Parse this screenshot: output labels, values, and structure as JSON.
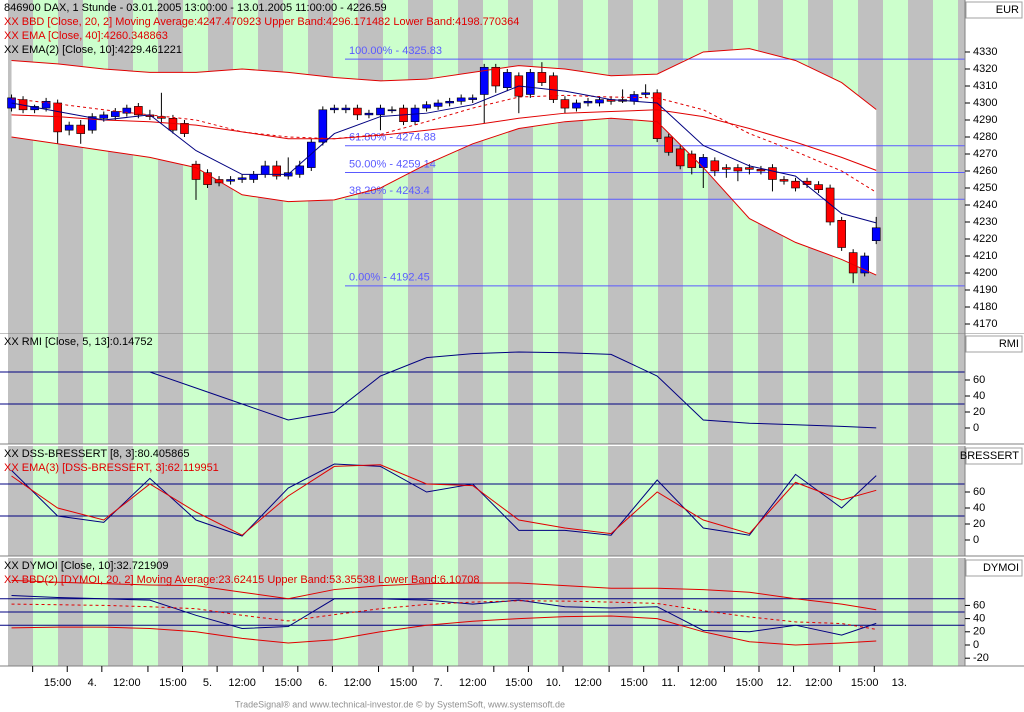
{
  "chart_data": [
    {
      "type": "candlestick",
      "axis_title": "EUR",
      "header": [
        {
          "text": "846900  DAX, 1 Stunde - 03.01.2005 13:00:00 - 13.01.2005 11:00:00 - 4226.59",
          "color": "#000000"
        },
        {
          "text": "XX BBD [Close, 20, 2] Moving Average:4247.470923 Upper Band:4296.171482 Lower Band:4198.770364",
          "color": "#e00000"
        },
        {
          "text": "XX EMA [Close, 40]:4260.348863",
          "color": "#e00000"
        },
        {
          "text": "XX EMA(2) [Close, 10]:4229.461221",
          "color": "#000000"
        }
      ],
      "xlim": [
        -1,
        82.7
      ],
      "ylim": [
        4165.3,
        4359.4
      ],
      "yticks": [
        4170,
        4180,
        4190,
        4200,
        4210,
        4220,
        4230,
        4240,
        4250,
        4260,
        4270,
        4280,
        4290,
        4300,
        4310,
        4320,
        4330
      ],
      "up_color": "#0000ff",
      "down_color": "#ff0000",
      "band_fill": "#ffffff",
      "ohlc": [
        [
          4297,
          4305,
          4295,
          4303
        ],
        [
          4302,
          4304,
          4294,
          4296
        ],
        [
          4296,
          4299,
          4294,
          4298
        ],
        [
          4297,
          4303,
          4295,
          4301
        ],
        [
          4300,
          4302,
          4276,
          4283
        ],
        [
          4284,
          4289,
          4281,
          4287
        ],
        [
          4287,
          4290,
          4276,
          4282
        ],
        [
          4284,
          4294,
          4282,
          4292
        ],
        [
          4291,
          4295,
          4289,
          4293
        ],
        [
          4292,
          4297,
          4290,
          4295
        ],
        [
          4294,
          4299,
          4292,
          4297
        ],
        [
          4298,
          4300,
          4291,
          4293
        ],
        [
          4293,
          4296,
          4290,
          4292
        ],
        [
          4292,
          4306,
          4288,
          4291
        ],
        [
          4291,
          4293,
          4282,
          4284
        ],
        [
          4288,
          4290,
          4280,
          4282
        ],
        [
          4264,
          4266,
          4243,
          4255
        ],
        [
          4259,
          4261,
          4250,
          4252
        ],
        [
          4255,
          4257,
          4251,
          4253
        ],
        [
          4254,
          4257,
          4252,
          4255
        ],
        [
          4255,
          4258,
          4253,
          4256
        ],
        [
          4255,
          4260,
          4253,
          4258
        ],
        [
          4258,
          4266,
          4256,
          4263
        ],
        [
          4263,
          4266,
          4255,
          4257
        ],
        [
          4257,
          4268,
          4255,
          4259
        ],
        [
          4258,
          4266,
          4256,
          4263
        ],
        [
          4262,
          4279,
          4260,
          4277
        ],
        [
          4277,
          4298,
          4275,
          4296
        ],
        [
          4296,
          4299,
          4294,
          4297
        ],
        [
          4296,
          4299,
          4294,
          4297
        ],
        [
          4297,
          4299,
          4290,
          4293
        ],
        [
          4293,
          4296,
          4291,
          4294
        ],
        [
          4293,
          4299,
          4284,
          4297
        ],
        [
          4296,
          4298,
          4294,
          4296
        ],
        [
          4297,
          4299,
          4287,
          4289
        ],
        [
          4289,
          4299,
          4287,
          4297
        ],
        [
          4297,
          4301,
          4295,
          4299
        ],
        [
          4298,
          4302,
          4296,
          4300
        ],
        [
          4300,
          4303,
          4298,
          4301
        ],
        [
          4301,
          4305,
          4299,
          4303
        ],
        [
          4302,
          4305,
          4300,
          4303
        ],
        [
          4305,
          4323,
          4288,
          4321
        ],
        [
          4321,
          4323,
          4306,
          4310
        ],
        [
          4309,
          4320,
          4307,
          4318
        ],
        [
          4316,
          4318,
          4294,
          4304
        ],
        [
          4305,
          4320,
          4303,
          4318
        ],
        [
          4318,
          4324,
          4310,
          4312
        ],
        [
          4316,
          4318,
          4300,
          4302
        ],
        [
          4302,
          4304,
          4294,
          4297
        ],
        [
          4297,
          4302,
          4295,
          4300
        ],
        [
          4300,
          4303,
          4298,
          4301
        ],
        [
          4300,
          4304,
          4298,
          4302
        ],
        [
          4302,
          4304,
          4299,
          4301
        ],
        [
          4302,
          4308,
          4300,
          4301
        ],
        [
          4301,
          4307,
          4299,
          4305
        ],
        [
          4305,
          4311,
          4303,
          4306
        ],
        [
          4306,
          4308,
          4277,
          4279
        ],
        [
          4280,
          4282,
          4269,
          4271
        ],
        [
          4273,
          4275,
          4261,
          4263
        ],
        [
          4270,
          4272,
          4258,
          4262
        ],
        [
          4262,
          4270,
          4250,
          4268
        ],
        [
          4266,
          4268,
          4257,
          4260
        ],
        [
          4262,
          4264,
          4256,
          4261
        ],
        [
          4262,
          4264,
          4254,
          4260
        ],
        [
          4262,
          4264,
          4258,
          4261
        ],
        [
          4261,
          4263,
          4258,
          4260
        ],
        [
          4262,
          4264,
          4248,
          4255
        ],
        [
          4255,
          4257,
          4252,
          4254
        ],
        [
          4254,
          4256,
          4248,
          4250
        ],
        [
          4254,
          4256,
          4250,
          4252
        ],
        [
          4252,
          4254,
          4247,
          4249
        ],
        [
          4250,
          4252,
          4228,
          4230
        ],
        [
          4231,
          4233,
          4213,
          4215
        ],
        [
          4212,
          4214,
          4194,
          4200
        ],
        [
          4200,
          4212,
          4198,
          4210
        ],
        [
          4219,
          4233,
          4217,
          4226.59
        ]
      ],
      "x": [
        0,
        4,
        8,
        12,
        16,
        20,
        24,
        28,
        32,
        36,
        40,
        44,
        48,
        52,
        56,
        60,
        64,
        68,
        72,
        75
      ],
      "series": [
        {
          "color": "#e00000",
          "values": [
            4325,
            4323,
            4320,
            4318,
            4318,
            4320,
            4318,
            4315,
            4313,
            4314,
            4318,
            4322,
            4320,
            4316,
            4317,
            4330,
            4332,
            4325,
            4312,
            4296.171482
          ]
        },
        {
          "color": "#e00000",
          "values": [
            4280,
            4276,
            4272,
            4268,
            4262,
            4246,
            4242,
            4243,
            4250,
            4264,
            4276,
            4285,
            4289,
            4291,
            4289,
            4262,
            4232,
            4218,
            4208,
            4198.770364
          ]
        },
        {
          "color": "#e00000",
          "dashed": true,
          "values": [
            4302.5,
            4299.5,
            4296,
            4293,
            4290,
            4283,
            4280,
            4279,
            4281.5,
            4289,
            4297,
            4303.5,
            4304.5,
            4303.5,
            4303,
            4296,
            4282,
            4271.5,
            4260,
            4247.470923
          ]
        },
        {
          "color": "#e00000",
          "values": [
            4293,
            4292,
            4290,
            4289,
            4287,
            4283,
            4279,
            4279,
            4281,
            4284,
            4287,
            4291,
            4294,
            4295,
            4296,
            4292,
            4285,
            4277,
            4268,
            4260.348863
          ]
        },
        {
          "color": "#000080",
          "values": [
            4300,
            4295,
            4290,
            4293,
            4272,
            4258,
            4258,
            4282,
            4292,
            4294,
            4299,
            4310,
            4307,
            4302,
            4300,
            4275,
            4263,
            4257,
            4235,
            4229.461221
          ]
        }
      ],
      "fib_color": "#5a5aff",
      "fib_levels": [
        {
          "value": 4325.83,
          "label": "100.00% - 4325.83"
        },
        {
          "value": 4274.88,
          "label": "61.80% - 4274.88"
        },
        {
          "value": 4259.14,
          "label": "50.00% - 4259.14"
        },
        {
          "value": 4243.4,
          "label": "38.20% - 4243.4"
        },
        {
          "value": 4192.45,
          "label": "0.00% - 4192.45"
        }
      ]
    },
    {
      "type": "line",
      "axis_title": "RMI",
      "header": [
        {
          "text": "XX RMI [Close, 5, 13]:0.14752",
          "color": "#000000"
        }
      ],
      "xlim": [
        -1,
        82.7
      ],
      "ylim": [
        -17.5,
        115
      ],
      "yticks": [
        0,
        20,
        40,
        60
      ],
      "levels": [
        30,
        70
      ],
      "level_color": "#000080",
      "x": [
        0,
        4,
        8,
        12,
        16,
        20,
        24,
        28,
        32,
        36,
        40,
        44,
        48,
        52,
        56,
        60,
        64,
        68,
        72,
        75
      ],
      "series": [
        {
          "color": "#000080",
          "values": [
            70,
            70,
            70,
            70,
            50,
            30,
            10,
            20,
            65,
            88,
            93,
            95,
            94,
            92,
            65,
            10,
            6,
            4,
            2,
            0.14752
          ]
        }
      ]
    },
    {
      "type": "line",
      "axis_title": "BRESSERT",
      "header": [
        {
          "text": "XX DSS-BRESSERT [8, 3]:80.405865",
          "color": "#000000"
        },
        {
          "text": "XX EMA(3) [DSS-BRESSERT, 3]:62.119951",
          "color": "#e00000"
        }
      ],
      "xlim": [
        -1,
        82.7
      ],
      "ylim": [
        -17.5,
        115
      ],
      "yticks": [
        0,
        20,
        40,
        60
      ],
      "levels": [
        30,
        70
      ],
      "level_color": "#000080",
      "x": [
        0,
        4,
        8,
        12,
        16,
        20,
        24,
        28,
        32,
        36,
        40,
        44,
        48,
        52,
        56,
        60,
        64,
        68,
        72,
        75
      ],
      "series": [
        {
          "color": "#000080",
          "values": [
            87,
            30,
            22,
            77,
            25,
            5,
            65,
            95,
            92,
            60,
            70,
            12,
            12,
            6,
            75,
            15,
            6,
            82,
            40,
            80.405865
          ]
        },
        {
          "color": "#e00000",
          "values": [
            80,
            40,
            25,
            70,
            35,
            6,
            55,
            92,
            94,
            70,
            68,
            25,
            15,
            8,
            60,
            25,
            8,
            72,
            50,
            62.119951
          ]
        }
      ]
    },
    {
      "type": "line",
      "axis_title": "DYMOI",
      "header": [
        {
          "text": "XX DYMOI [Close, 10]:32.721909",
          "color": "#000000"
        },
        {
          "text": "XX BBD(2) [DYMOI, 20, 2] Moving Average:23.62415 Upper Band:53.35538 Lower Band:6.10708",
          "color": "#e00000"
        }
      ],
      "xlim": [
        -1,
        82.7
      ],
      "ylim": [
        -28.8,
        128.8
      ],
      "yticks": [
        -20,
        0,
        20,
        40,
        60
      ],
      "levels": [
        30,
        50,
        70
      ],
      "level_color": "#000080",
      "x": [
        0,
        4,
        8,
        12,
        16,
        20,
        24,
        28,
        32,
        36,
        40,
        44,
        48,
        52,
        56,
        60,
        64,
        68,
        72,
        75
      ],
      "series": [
        {
          "color": "#000080",
          "values": [
            75,
            72,
            70,
            68,
            45,
            25,
            28,
            70,
            70,
            68,
            62,
            68,
            58,
            56,
            58,
            22,
            20,
            30,
            15,
            32.721909
          ]
        },
        {
          "color": "#e00000",
          "values": [
            98,
            95,
            93,
            91,
            90,
            80,
            70,
            84,
            90,
            93,
            94,
            94,
            90,
            86,
            86,
            84,
            80,
            70,
            62,
            53.35538
          ]
        },
        {
          "color": "#e00000",
          "values": [
            26,
            27,
            27,
            25,
            20,
            10,
            3,
            8,
            20,
            30,
            36,
            40,
            43,
            44,
            40,
            20,
            5,
            0,
            3,
            6.10708
          ]
        },
        {
          "color": "#e00000",
          "dashed": true,
          "values": [
            62,
            61,
            60,
            58,
            55,
            45,
            36.5,
            46,
            55,
            61.5,
            65,
            67,
            66.5,
            65,
            63,
            52,
            42.5,
            35,
            32.5,
            23.62415
          ]
        }
      ],
      "xticks": [
        {
          "value": 4,
          "label": "15:00"
        },
        {
          "value": 7,
          "label": "4."
        },
        {
          "value": 10,
          "label": "12:00"
        },
        {
          "value": 14,
          "label": "15:00"
        },
        {
          "value": 17,
          "label": "5."
        },
        {
          "value": 20,
          "label": "12:00"
        },
        {
          "value": 24,
          "label": "15:00"
        },
        {
          "value": 27,
          "label": "6."
        },
        {
          "value": 30,
          "label": "12:00"
        },
        {
          "value": 34,
          "label": "15:00"
        },
        {
          "value": 37,
          "label": "7."
        },
        {
          "value": 40,
          "label": "12:00"
        },
        {
          "value": 44,
          "label": "15:00"
        },
        {
          "value": 47,
          "label": "10."
        },
        {
          "value": 50,
          "label": "12:00"
        },
        {
          "value": 54,
          "label": "15:00"
        },
        {
          "value": 57,
          "label": "11."
        },
        {
          "value": 60,
          "label": "12:00"
        },
        {
          "value": 64,
          "label": "15:00"
        },
        {
          "value": 67,
          "label": "12."
        },
        {
          "value": 70,
          "label": "12:00"
        },
        {
          "value": 74,
          "label": "15:00"
        },
        {
          "value": 77,
          "label": "13."
        }
      ]
    }
  ],
  "footer": "TradeSignal® and www.technical-investor.de © by  SystemSoft, www.systemsoft.de"
}
